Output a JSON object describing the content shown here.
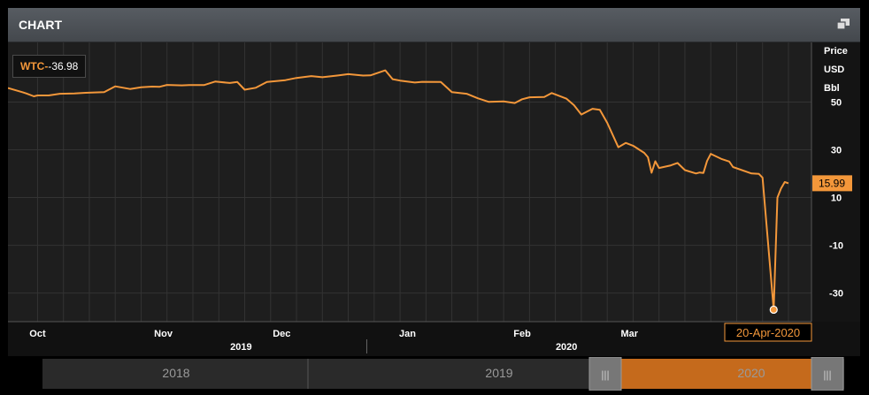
{
  "panel": {
    "title": "CHART",
    "popout_icon": "popout-icon"
  },
  "legend": {
    "series": "WTC",
    "separator": "-",
    "value": "-36.98"
  },
  "axis_units": [
    "Price",
    "USD",
    "Bbl"
  ],
  "colors": {
    "line": "#f3973a",
    "accent": "#c56a1c",
    "background": "#1e1e1e",
    "grid": "#333333"
  },
  "chart_data": {
    "type": "line",
    "title": "",
    "xlabel": "",
    "ylabel": "Price USD Bbl",
    "ylim": [
      -42,
      75
    ],
    "yticks": [
      50,
      30,
      10,
      -10,
      -30
    ],
    "grid": true,
    "x_tick_labels": [
      "Oct",
      "Nov",
      "Dec",
      "Jan",
      "Feb",
      "Mar"
    ],
    "year_labels": [
      "2019",
      "2020"
    ],
    "last_value_label": "15.99",
    "selected_point": {
      "date": "20-Apr-2020",
      "value": -36.98
    },
    "series": [
      {
        "name": "WTC",
        "points": [
          [
            "2019-09-26",
            55.9
          ],
          [
            "2019-09-30",
            54.1
          ],
          [
            "2019-10-01",
            53.6
          ],
          [
            "2019-10-03",
            52.4
          ],
          [
            "2019-10-04",
            52.8
          ],
          [
            "2019-10-07",
            52.8
          ],
          [
            "2019-10-10",
            53.5
          ],
          [
            "2019-10-14",
            53.6
          ],
          [
            "2019-10-17",
            53.9
          ],
          [
            "2019-10-22",
            54.2
          ],
          [
            "2019-10-25",
            56.6
          ],
          [
            "2019-10-29",
            55.5
          ],
          [
            "2019-11-01",
            56.2
          ],
          [
            "2019-11-04",
            56.5
          ],
          [
            "2019-11-06",
            56.4
          ],
          [
            "2019-11-08",
            57.2
          ],
          [
            "2019-11-12",
            57.0
          ],
          [
            "2019-11-14",
            57.1
          ],
          [
            "2019-11-18",
            57.1
          ],
          [
            "2019-11-21",
            58.6
          ],
          [
            "2019-11-25",
            58.0
          ],
          [
            "2019-11-27",
            58.4
          ],
          [
            "2019-11-29",
            55.2
          ],
          [
            "2019-12-02",
            56.0
          ],
          [
            "2019-12-05",
            58.4
          ],
          [
            "2019-12-10",
            59.2
          ],
          [
            "2019-12-13",
            60.1
          ],
          [
            "2019-12-17",
            60.9
          ],
          [
            "2019-12-20",
            60.4
          ],
          [
            "2019-12-24",
            61.1
          ],
          [
            "2019-12-27",
            61.7
          ],
          [
            "2019-12-31",
            61.1
          ],
          [
            "2020-01-02",
            61.2
          ],
          [
            "2020-01-06",
            63.3
          ],
          [
            "2020-01-08",
            59.6
          ],
          [
            "2020-01-10",
            59.0
          ],
          [
            "2020-01-14",
            58.2
          ],
          [
            "2020-01-16",
            58.5
          ],
          [
            "2020-01-21",
            58.4
          ],
          [
            "2020-01-24",
            54.2
          ],
          [
            "2020-01-28",
            53.5
          ],
          [
            "2020-01-31",
            51.6
          ],
          [
            "2020-02-03",
            50.1
          ],
          [
            "2020-02-07",
            50.3
          ],
          [
            "2020-02-10",
            49.6
          ],
          [
            "2020-02-12",
            51.2
          ],
          [
            "2020-02-14",
            52.0
          ],
          [
            "2020-02-18",
            52.1
          ],
          [
            "2020-02-20",
            53.8
          ],
          [
            "2020-02-24",
            51.4
          ],
          [
            "2020-02-26",
            48.7
          ],
          [
            "2020-02-28",
            44.8
          ],
          [
            "2020-03-02",
            47.2
          ],
          [
            "2020-03-04",
            46.8
          ],
          [
            "2020-03-06",
            41.3
          ],
          [
            "2020-03-09",
            31.1
          ],
          [
            "2020-03-11",
            32.9
          ],
          [
            "2020-03-13",
            31.7
          ],
          [
            "2020-03-16",
            28.7
          ],
          [
            "2020-03-17",
            26.9
          ],
          [
            "2020-03-18",
            20.4
          ],
          [
            "2020-03-19",
            25.2
          ],
          [
            "2020-03-20",
            22.4
          ],
          [
            "2020-03-23",
            23.4
          ],
          [
            "2020-03-25",
            24.5
          ],
          [
            "2020-03-27",
            21.5
          ],
          [
            "2020-03-30",
            20.1
          ],
          [
            "2020-03-31",
            20.5
          ],
          [
            "2020-04-01",
            20.3
          ],
          [
            "2020-04-02",
            25.3
          ],
          [
            "2020-04-03",
            28.3
          ],
          [
            "2020-04-06",
            26.1
          ],
          [
            "2020-04-08",
            25.1
          ],
          [
            "2020-04-09",
            22.8
          ],
          [
            "2020-04-14",
            20.1
          ],
          [
            "2020-04-16",
            19.9
          ],
          [
            "2020-04-17",
            18.3
          ],
          [
            "2020-04-20",
            -36.98
          ],
          [
            "2020-04-21",
            10.0
          ],
          [
            "2020-04-22",
            13.8
          ],
          [
            "2020-04-23",
            16.5
          ],
          [
            "2020-04-24",
            15.99
          ]
        ]
      }
    ]
  },
  "navigator": {
    "years": [
      "2018",
      "2019",
      "2020"
    ],
    "left_handle": "|||",
    "right_handle": "|||"
  }
}
